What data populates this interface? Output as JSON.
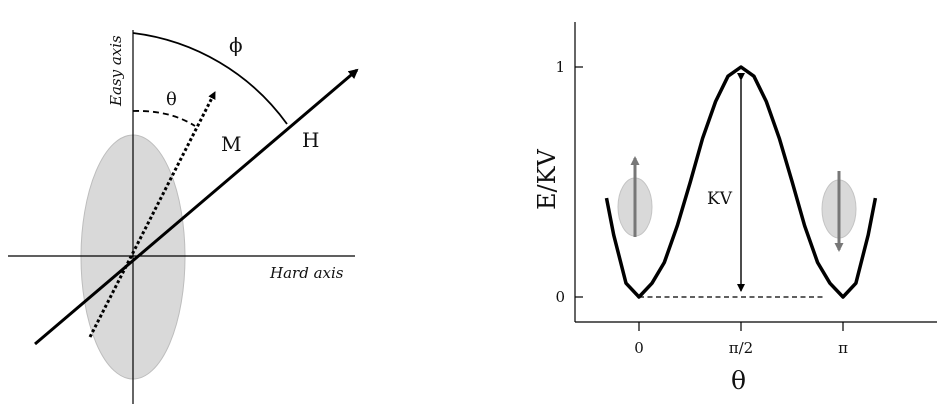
{
  "left_diagram": {
    "easy_axis_label": "Easy axis",
    "hard_axis_label": "Hard axis",
    "phi_label": "ϕ",
    "theta_label": "θ",
    "m_label": "M",
    "h_label": "H"
  },
  "right_plot": {
    "ylabel": "E/KV",
    "xlabel": "θ",
    "annotation": "KV",
    "xticks": [
      "0",
      "π/2",
      "π"
    ],
    "yticks": [
      "0",
      "1"
    ],
    "colors": {
      "particle_fill": "#d9d9d9",
      "moment_arrow": "#777777",
      "curve": "#000000"
    }
  },
  "chart_data": {
    "type": "line",
    "title": "",
    "xlabel": "θ",
    "ylabel": "E/KV",
    "x_tick_labels": [
      "0",
      "π/2",
      "π"
    ],
    "y_tick_labels": [
      "0",
      "1"
    ],
    "ylim": [
      0,
      1
    ],
    "series": [
      {
        "x": [
          -0.5,
          -0.39,
          -0.2,
          0,
          0.2,
          0.39,
          0.59,
          0.79,
          0.98,
          1.18,
          1.37,
          1.5708,
          1.77,
          1.96,
          2.16,
          2.36,
          2.55,
          2.75,
          2.94,
          3.1416,
          3.34,
          3.53,
          3.64
        ],
        "y": [
          0.43,
          0.27,
          0.06,
          0,
          0.06,
          0.15,
          0.31,
          0.5,
          0.69,
          0.85,
          0.96,
          1,
          0.96,
          0.85,
          0.69,
          0.5,
          0.31,
          0.15,
          0.06,
          0,
          0.06,
          0.27,
          0.43
        ]
      }
    ],
    "annotations": [
      "KV"
    ],
    "grid": false,
    "legend": "none"
  }
}
